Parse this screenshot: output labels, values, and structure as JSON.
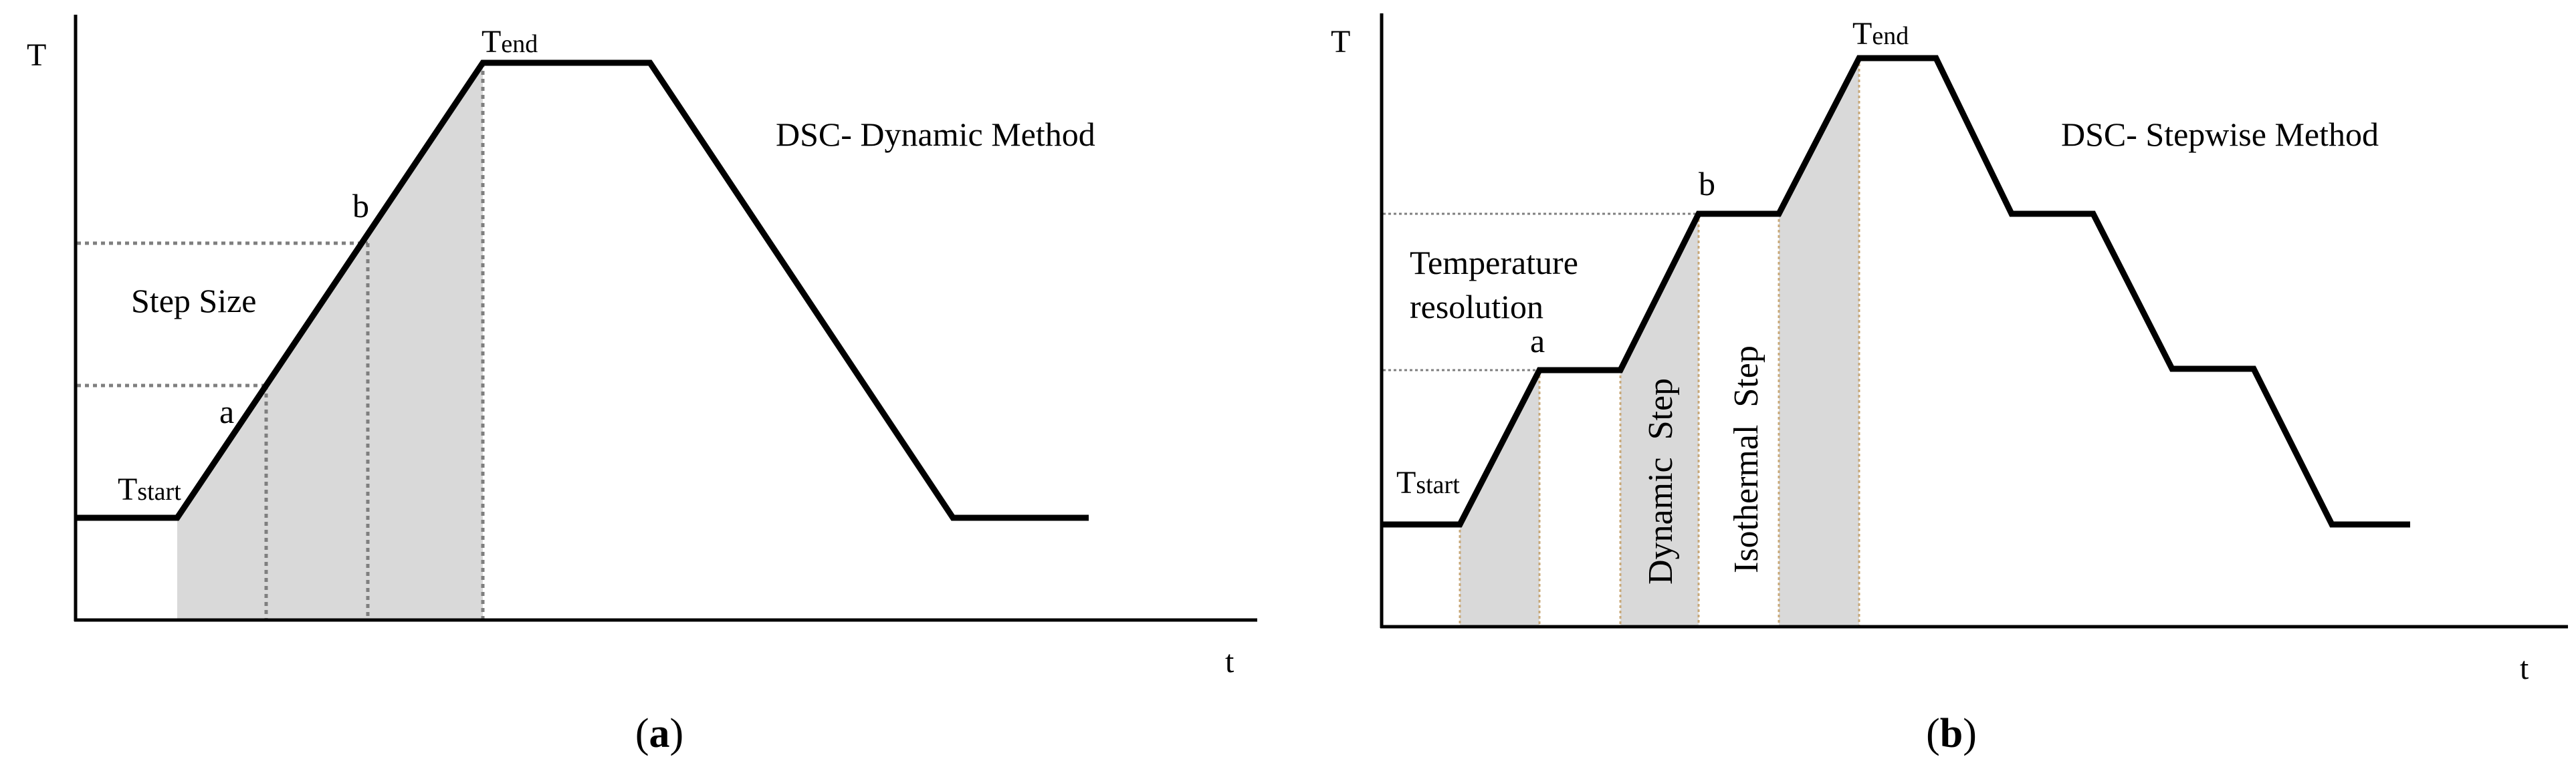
{
  "panels": {
    "a": {
      "caption_open": "(",
      "caption_letter": "a",
      "caption_close": ")",
      "y_axis_label": "T",
      "x_axis_label": "t",
      "method_title": "DSC- Dynamic Method",
      "t_end_main": "T",
      "t_end_sub": "end",
      "t_start_main": "T",
      "t_start_sub": "start",
      "point_a": "a",
      "point_b": "b",
      "step_size_label": "Step Size"
    },
    "b": {
      "caption_open": "(",
      "caption_letter": "b",
      "caption_close": ")",
      "y_axis_label": "T",
      "x_axis_label": "t",
      "method_title": "DSC- Stepwise Method",
      "t_end_main": "T",
      "t_end_sub": "end",
      "t_start_main": "T",
      "t_start_sub": "start",
      "point_a": "a",
      "point_b": "b",
      "temp_res_line1": "Temperature",
      "temp_res_line2": "resolution",
      "dynamic_step_label": "Dynamic  Step",
      "isothermal_step_label": "Isothermal  Step"
    }
  },
  "colors": {
    "line": "#000000",
    "shade": "#d9d9d9",
    "dotted": "#7f7f7f",
    "dotted_b": "#c8a878"
  }
}
